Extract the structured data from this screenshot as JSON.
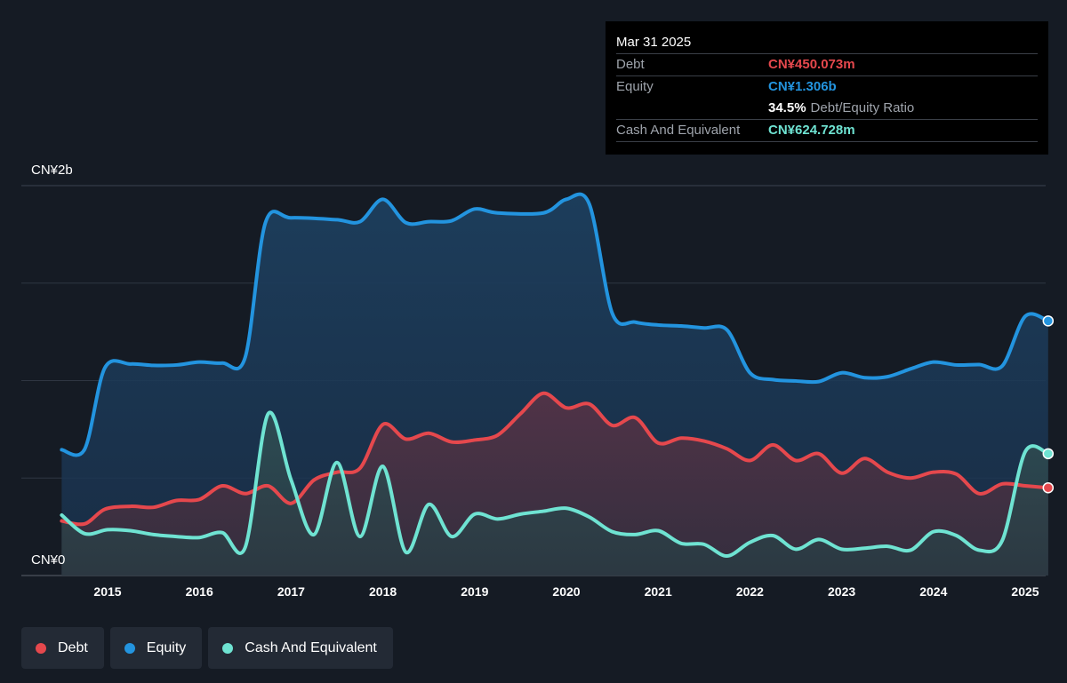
{
  "tooltip": {
    "date": "Mar 31 2025",
    "debt_label": "Debt",
    "debt_value": "CN¥450.073m",
    "equity_label": "Equity",
    "equity_value": "CN¥1.306b",
    "ratio_value": "34.5%",
    "ratio_label": "Debt/Equity Ratio",
    "cash_label": "Cash And Equivalent",
    "cash_value": "CN¥624.728m"
  },
  "legend": [
    {
      "label": "Debt",
      "color": "#e5484d"
    },
    {
      "label": "Equity",
      "color": "#2394df"
    },
    {
      "label": "Cash And Equivalent",
      "color": "#6fe3d2"
    }
  ],
  "colors": {
    "debt": "#e5484d",
    "equity": "#2394df",
    "cash": "#6fe3d2",
    "background": "#151b24"
  },
  "chart_data": {
    "type": "area",
    "unit": "CN¥ m",
    "ylim": [
      0,
      2000
    ],
    "y_tick_labels": [
      "CN¥0",
      "CN¥2b"
    ],
    "x_tick_labels": [
      "2015",
      "2016",
      "2017",
      "2018",
      "2019",
      "2020",
      "2021",
      "2022",
      "2023",
      "2024",
      "2025"
    ],
    "grid": true,
    "legend_position": "bottom-left",
    "series": [
      {
        "name": "Equity",
        "points": [
          [
            2014.5,
            645
          ],
          [
            2014.75,
            648
          ],
          [
            2014.97,
            1065
          ],
          [
            2015.25,
            1085
          ],
          [
            2015.5,
            1078
          ],
          [
            2015.75,
            1080
          ],
          [
            2016.0,
            1095
          ],
          [
            2016.25,
            1090
          ],
          [
            2016.5,
            1120
          ],
          [
            2016.72,
            1810
          ],
          [
            2017.0,
            1835
          ],
          [
            2017.5,
            1825
          ],
          [
            2017.75,
            1815
          ],
          [
            2018.0,
            1930
          ],
          [
            2018.25,
            1810
          ],
          [
            2018.5,
            1815
          ],
          [
            2018.75,
            1820
          ],
          [
            2019.0,
            1880
          ],
          [
            2019.25,
            1860
          ],
          [
            2019.75,
            1860
          ],
          [
            2020.0,
            1930
          ],
          [
            2020.25,
            1905
          ],
          [
            2020.5,
            1345
          ],
          [
            2020.75,
            1300
          ],
          [
            2021.0,
            1285
          ],
          [
            2021.25,
            1280
          ],
          [
            2021.5,
            1270
          ],
          [
            2021.75,
            1260
          ],
          [
            2022.0,
            1040
          ],
          [
            2022.25,
            1005
          ],
          [
            2022.5,
            998
          ],
          [
            2022.75,
            995
          ],
          [
            2023.0,
            1040
          ],
          [
            2023.25,
            1015
          ],
          [
            2023.5,
            1020
          ],
          [
            2023.75,
            1060
          ],
          [
            2024.0,
            1095
          ],
          [
            2024.25,
            1080
          ],
          [
            2024.5,
            1082
          ],
          [
            2024.75,
            1075
          ],
          [
            2025.0,
            1330
          ],
          [
            2025.25,
            1306
          ]
        ]
      },
      {
        "name": "Debt",
        "points": [
          [
            2014.5,
            280
          ],
          [
            2014.75,
            265
          ],
          [
            2014.97,
            340
          ],
          [
            2015.25,
            355
          ],
          [
            2015.5,
            350
          ],
          [
            2015.75,
            385
          ],
          [
            2016.0,
            390
          ],
          [
            2016.25,
            460
          ],
          [
            2016.5,
            420
          ],
          [
            2016.75,
            460
          ],
          [
            2017.0,
            370
          ],
          [
            2017.25,
            490
          ],
          [
            2017.5,
            530
          ],
          [
            2017.75,
            550
          ],
          [
            2018.0,
            775
          ],
          [
            2018.25,
            700
          ],
          [
            2018.5,
            730
          ],
          [
            2018.75,
            685
          ],
          [
            2019.0,
            695
          ],
          [
            2019.25,
            720
          ],
          [
            2019.5,
            830
          ],
          [
            2019.75,
            935
          ],
          [
            2020.0,
            860
          ],
          [
            2020.25,
            880
          ],
          [
            2020.5,
            770
          ],
          [
            2020.75,
            810
          ],
          [
            2021.0,
            680
          ],
          [
            2021.25,
            705
          ],
          [
            2021.5,
            690
          ],
          [
            2021.75,
            650
          ],
          [
            2022.0,
            590
          ],
          [
            2022.25,
            670
          ],
          [
            2022.5,
            590
          ],
          [
            2022.75,
            625
          ],
          [
            2023.0,
            525
          ],
          [
            2023.25,
            600
          ],
          [
            2023.5,
            530
          ],
          [
            2023.75,
            500
          ],
          [
            2024.0,
            530
          ],
          [
            2024.25,
            520
          ],
          [
            2024.5,
            420
          ],
          [
            2024.75,
            470
          ],
          [
            2025.0,
            460
          ],
          [
            2025.25,
            450
          ]
        ]
      },
      {
        "name": "Cash And Equivalent",
        "points": [
          [
            2014.5,
            310
          ],
          [
            2014.75,
            215
          ],
          [
            2015.0,
            235
          ],
          [
            2015.25,
            230
          ],
          [
            2015.5,
            210
          ],
          [
            2015.75,
            200
          ],
          [
            2016.0,
            195
          ],
          [
            2016.25,
            220
          ],
          [
            2016.5,
            145
          ],
          [
            2016.75,
            830
          ],
          [
            2017.0,
            490
          ],
          [
            2017.25,
            210
          ],
          [
            2017.5,
            580
          ],
          [
            2017.75,
            200
          ],
          [
            2018.0,
            560
          ],
          [
            2018.25,
            120
          ],
          [
            2018.5,
            365
          ],
          [
            2018.75,
            200
          ],
          [
            2019.0,
            315
          ],
          [
            2019.25,
            290
          ],
          [
            2019.5,
            315
          ],
          [
            2019.75,
            330
          ],
          [
            2020.0,
            345
          ],
          [
            2020.25,
            300
          ],
          [
            2020.5,
            225
          ],
          [
            2020.75,
            210
          ],
          [
            2021.0,
            230
          ],
          [
            2021.25,
            165
          ],
          [
            2021.5,
            160
          ],
          [
            2021.75,
            100
          ],
          [
            2022.0,
            170
          ],
          [
            2022.25,
            205
          ],
          [
            2022.5,
            135
          ],
          [
            2022.75,
            185
          ],
          [
            2023.0,
            135
          ],
          [
            2023.25,
            140
          ],
          [
            2023.5,
            150
          ],
          [
            2023.75,
            130
          ],
          [
            2024.0,
            225
          ],
          [
            2024.25,
            205
          ],
          [
            2024.5,
            130
          ],
          [
            2024.75,
            180
          ],
          [
            2025.0,
            635
          ],
          [
            2025.25,
            625
          ]
        ]
      }
    ]
  }
}
